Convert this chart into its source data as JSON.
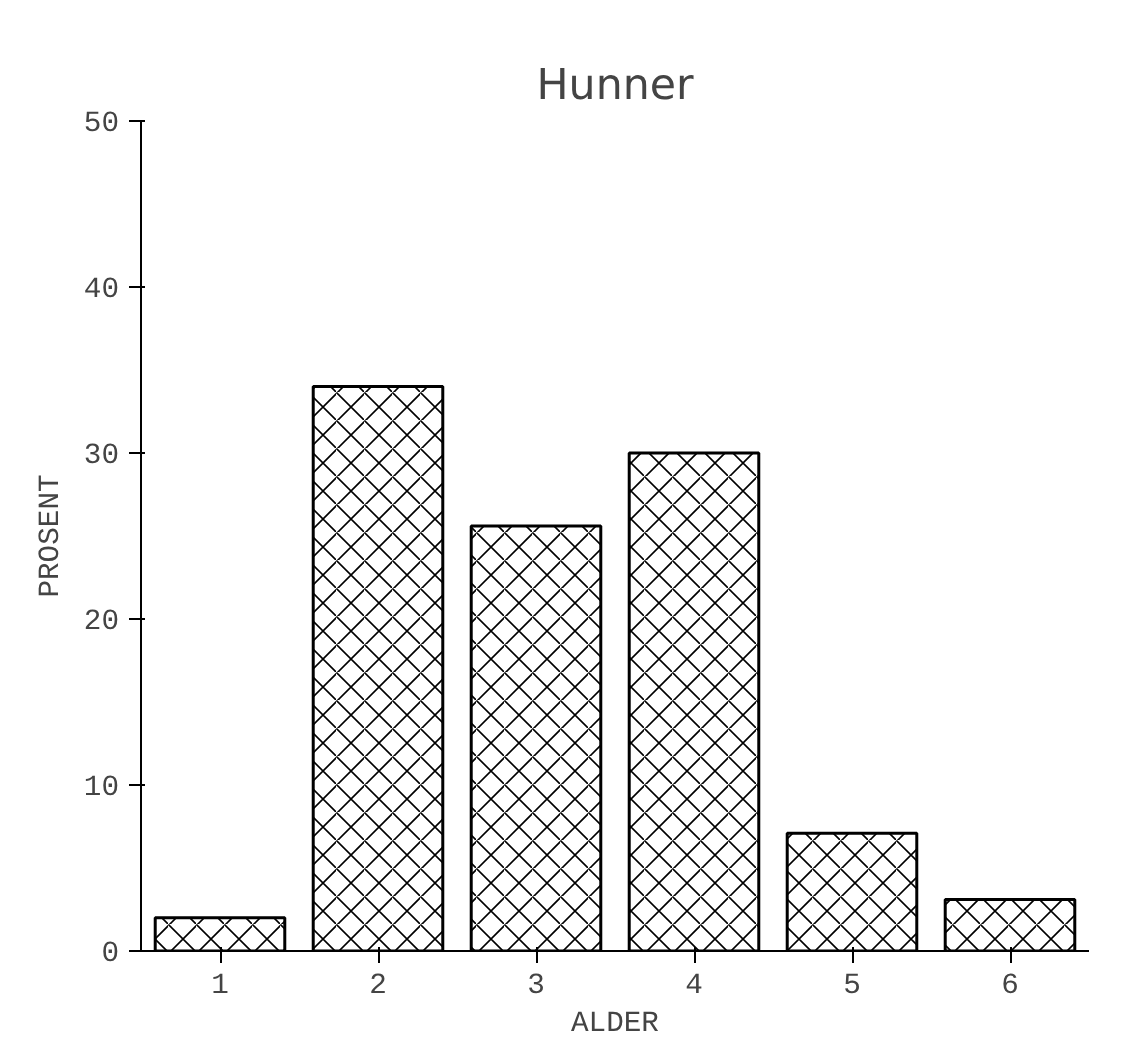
{
  "chart_data": {
    "type": "bar",
    "title": "Hunner",
    "xlabel": "ALDER",
    "ylabel": "PROSENT",
    "categories": [
      "1",
      "2",
      "3",
      "4",
      "5",
      "6"
    ],
    "values": [
      2,
      34,
      25.6,
      30,
      7.1,
      3.1
    ],
    "color": "#000000",
    "ylim": [
      0,
      50
    ],
    "yticks": [
      0,
      10,
      20,
      30,
      40,
      50
    ],
    "grid": false
  }
}
